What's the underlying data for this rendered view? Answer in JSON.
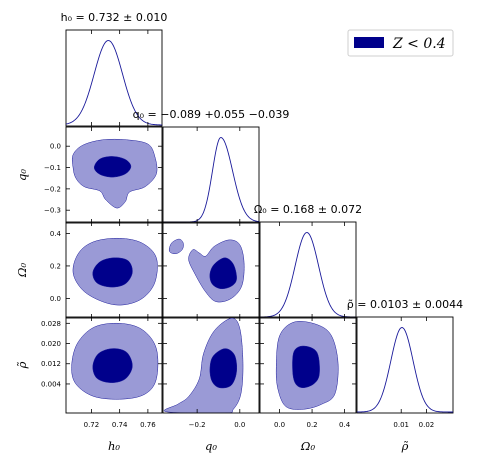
{
  "colors": {
    "inner": "#00008b",
    "outer": "#9a9ad6",
    "line": "#1a1a9a",
    "frame": "#000000"
  },
  "legend": {
    "label": "Z < 0.4",
    "placement": "top-right"
  },
  "chart_data": {
    "type": "corner",
    "parameters": [
      {
        "key": "h0",
        "label": "h₀",
        "range": [
          0.702,
          0.77
        ],
        "ticks": [
          0.72,
          0.74,
          0.76
        ],
        "tick_labels": [
          "0.72",
          "0.74",
          "0.76"
        ],
        "title": "h₀ = 0.732 ± 0.010",
        "mean": 0.732,
        "sigma": 0.01
      },
      {
        "key": "q0",
        "label": "q₀",
        "range": [
          -0.36,
          0.09
        ],
        "ticks": [
          -0.2,
          0.0
        ],
        "tick_labels": [
          "−0.2",
          "0.0"
        ],
        "y_ticks": [
          0.0,
          -0.1,
          -0.2,
          -0.3
        ],
        "y_tick_labels": [
          "0.0",
          "−0.1",
          "−0.2",
          "−0.3"
        ],
        "title": "q₀ = −0.089 +0.055 −0.039",
        "mean": -0.089,
        "sigma_plus": 0.055,
        "sigma_minus": 0.039
      },
      {
        "key": "Om0",
        "label": "Ω₀",
        "range": [
          -0.12,
          0.47
        ],
        "ticks": [
          0.0,
          0.2,
          0.4
        ],
        "tick_labels": [
          "0.0",
          "0.2",
          "0.4"
        ],
        "y_ticks": [
          0.4,
          0.2,
          0.0
        ],
        "y_tick_labels": [
          "0.4",
          "0.2",
          "0.0"
        ],
        "title": "Ω₀ = 0.168 ± 0.072",
        "mean": 0.168,
        "sigma": 0.072
      },
      {
        "key": "rho",
        "label": "ρ̃",
        "range": [
          -0.0075,
          0.0305
        ],
        "ticks": [
          0.01,
          0.02
        ],
        "tick_labels": [
          "0.01",
          "0.02"
        ],
        "y_ticks": [
          0.028,
          0.02,
          0.012,
          0.004
        ],
        "y_tick_labels": [
          "0.028",
          "0.020",
          "0.012",
          "0.004"
        ],
        "title": "ρ̃ = 0.0103 ± 0.0044",
        "mean": 0.0103,
        "sigma": 0.0044
      }
    ],
    "contour_levels": [
      "68%",
      "95%"
    ],
    "pairs": [
      {
        "x": "h0",
        "y": "q0",
        "inner": [
          [
            0.722,
            -0.1
          ],
          [
            0.726,
            -0.06
          ],
          [
            0.735,
            -0.048
          ],
          [
            0.744,
            -0.062
          ],
          [
            0.748,
            -0.095
          ],
          [
            0.744,
            -0.13
          ],
          [
            0.735,
            -0.145
          ],
          [
            0.726,
            -0.132
          ]
        ],
        "outer": [
          [
            0.707,
            -0.04
          ],
          [
            0.714,
            0.005
          ],
          [
            0.728,
            0.03
          ],
          [
            0.745,
            0.03
          ],
          [
            0.76,
            0.01
          ],
          [
            0.765,
            -0.05
          ],
          [
            0.766,
            -0.13
          ],
          [
            0.758,
            -0.19
          ],
          [
            0.747,
            -0.215
          ],
          [
            0.744,
            -0.26
          ],
          [
            0.738,
            -0.29
          ],
          [
            0.73,
            -0.25
          ],
          [
            0.726,
            -0.21
          ],
          [
            0.715,
            -0.19
          ],
          [
            0.709,
            -0.15
          ],
          [
            0.707,
            -0.1
          ]
        ]
      },
      {
        "x": "h0",
        "y": "Om0",
        "inner": [
          [
            0.721,
            0.16
          ],
          [
            0.726,
            0.225
          ],
          [
            0.736,
            0.25
          ],
          [
            0.746,
            0.232
          ],
          [
            0.749,
            0.16
          ],
          [
            0.744,
            0.09
          ],
          [
            0.734,
            0.07
          ],
          [
            0.724,
            0.095
          ]
        ],
        "outer": [
          [
            0.707,
            0.16
          ],
          [
            0.711,
            0.28
          ],
          [
            0.722,
            0.35
          ],
          [
            0.74,
            0.37
          ],
          [
            0.756,
            0.34
          ],
          [
            0.766,
            0.25
          ],
          [
            0.765,
            0.1
          ],
          [
            0.756,
            0.0
          ],
          [
            0.742,
            -0.04
          ],
          [
            0.728,
            -0.02
          ],
          [
            0.714,
            0.05
          ]
        ]
      },
      {
        "x": "h0",
        "y": "rho",
        "inner": [
          [
            0.721,
            0.011
          ],
          [
            0.725,
            0.016
          ],
          [
            0.735,
            0.018
          ],
          [
            0.745,
            0.0165
          ],
          [
            0.749,
            0.011
          ],
          [
            0.744,
            0.006
          ],
          [
            0.734,
            0.0045
          ],
          [
            0.724,
            0.0062
          ]
        ],
        "outer": [
          [
            0.706,
            0.011
          ],
          [
            0.71,
            0.02
          ],
          [
            0.722,
            0.0265
          ],
          [
            0.74,
            0.028
          ],
          [
            0.756,
            0.0255
          ],
          [
            0.766,
            0.018
          ],
          [
            0.766,
            0.006
          ],
          [
            0.758,
            0.0
          ],
          [
            0.742,
            -0.002
          ],
          [
            0.722,
            -0.001
          ],
          [
            0.709,
            0.004
          ]
        ]
      },
      {
        "x": "q0",
        "y": "Om0",
        "inner": [
          [
            -0.14,
            0.15
          ],
          [
            -0.12,
            0.21
          ],
          [
            -0.07,
            0.25
          ],
          [
            -0.03,
            0.21
          ],
          [
            -0.015,
            0.12
          ],
          [
            -0.04,
            0.075
          ],
          [
            -0.09,
            0.06
          ],
          [
            -0.13,
            0.09
          ]
        ],
        "outer": [
          [
            -0.24,
            0.24
          ],
          [
            -0.22,
            0.3
          ],
          [
            -0.19,
            0.28
          ],
          [
            -0.16,
            0.26
          ],
          [
            -0.12,
            0.32
          ],
          [
            -0.05,
            0.36
          ],
          [
            0.0,
            0.33
          ],
          [
            0.02,
            0.22
          ],
          [
            0.01,
            0.08
          ],
          [
            -0.04,
            0.0
          ],
          [
            -0.11,
            -0.02
          ],
          [
            -0.16,
            0.04
          ],
          [
            -0.21,
            0.15
          ]
        ],
        "outer_extra": [
          [
            -0.33,
            0.29
          ],
          [
            -0.32,
            0.34
          ],
          [
            -0.285,
            0.365
          ],
          [
            -0.265,
            0.34
          ],
          [
            -0.27,
            0.3
          ],
          [
            -0.3,
            0.275
          ]
        ]
      },
      {
        "x": "q0",
        "y": "rho",
        "inner": [
          [
            -0.14,
            0.01
          ],
          [
            -0.125,
            0.015
          ],
          [
            -0.07,
            0.018
          ],
          [
            -0.025,
            0.0155
          ],
          [
            -0.015,
            0.009
          ],
          [
            -0.04,
            0.0035
          ],
          [
            -0.095,
            0.0025
          ],
          [
            -0.13,
            0.005
          ]
        ],
        "outer": [
          [
            -0.345,
            -0.007
          ],
          [
            -0.29,
            -0.004
          ],
          [
            -0.24,
            -0.001
          ],
          [
            -0.19,
            0.006
          ],
          [
            -0.17,
            0.016
          ],
          [
            -0.12,
            0.025
          ],
          [
            -0.04,
            0.03
          ],
          [
            0.0,
            0.026
          ],
          [
            0.015,
            0.012
          ],
          [
            0.005,
            0.0
          ],
          [
            -0.03,
            -0.006
          ],
          [
            -0.07,
            -0.0075
          ]
        ]
      },
      {
        "x": "Om0",
        "y": "rho",
        "inner": [
          [
            0.08,
            0.01
          ],
          [
            0.09,
            0.017
          ],
          [
            0.15,
            0.019
          ],
          [
            0.23,
            0.0165
          ],
          [
            0.245,
            0.008
          ],
          [
            0.21,
            0.004
          ],
          [
            0.14,
            0.0025
          ],
          [
            0.095,
            0.0045
          ]
        ],
        "outer": [
          [
            -0.02,
            0.011
          ],
          [
            0.0,
            0.023
          ],
          [
            0.09,
            0.0285
          ],
          [
            0.23,
            0.0275
          ],
          [
            0.32,
            0.023
          ],
          [
            0.36,
            0.012
          ],
          [
            0.34,
            0.0
          ],
          [
            0.26,
            -0.004
          ],
          [
            0.15,
            -0.006
          ],
          [
            0.04,
            -0.005
          ],
          [
            -0.01,
            0.002
          ]
        ]
      }
    ]
  }
}
